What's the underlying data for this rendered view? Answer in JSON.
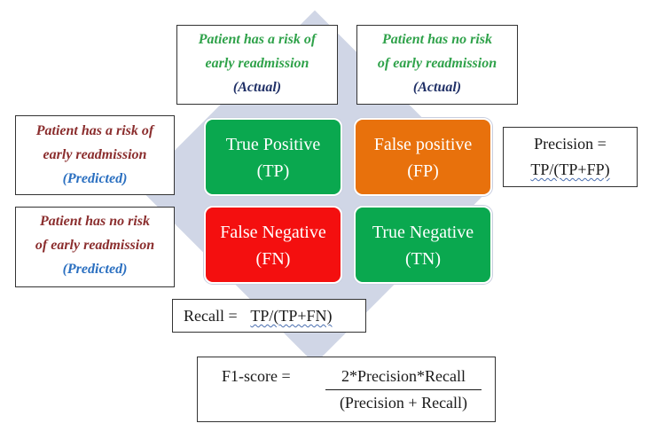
{
  "actual_risk": {
    "line1": "Patient has a risk of",
    "line2": "early readmission",
    "tag": "(Actual)"
  },
  "actual_no_risk": {
    "line1": "Patient has no risk",
    "line2": "of early readmission",
    "tag": "(Actual)"
  },
  "predicted_risk": {
    "line1": "Patient has a risk of",
    "line2": "early readmission",
    "tag": "(Predicted)"
  },
  "predicted_no_risk": {
    "line1": "Patient has no risk",
    "line2": "of early readmission",
    "tag": "(Predicted)"
  },
  "matrix": {
    "tp": {
      "name": "True Positive",
      "abbr": "(TP)",
      "color": "#0aa84f"
    },
    "fp": {
      "name": "False positive",
      "abbr": "(FP)",
      "color": "#e8710c"
    },
    "fn": {
      "name": "False Negative",
      "abbr": "(FN)",
      "color": "#f40f0f"
    },
    "tn": {
      "name": "True Negative",
      "abbr": "(TN)",
      "color": "#0aa84f"
    }
  },
  "precision": {
    "label": "Precision =",
    "formula": "TP/(TP+FP)"
  },
  "recall": {
    "label": "Recall =",
    "formula": "TP/(TP+FN)"
  },
  "f1": {
    "label": "F1-score =",
    "numerator": "2*Precision*Recall",
    "denominator": "(Precision + Recall)"
  }
}
